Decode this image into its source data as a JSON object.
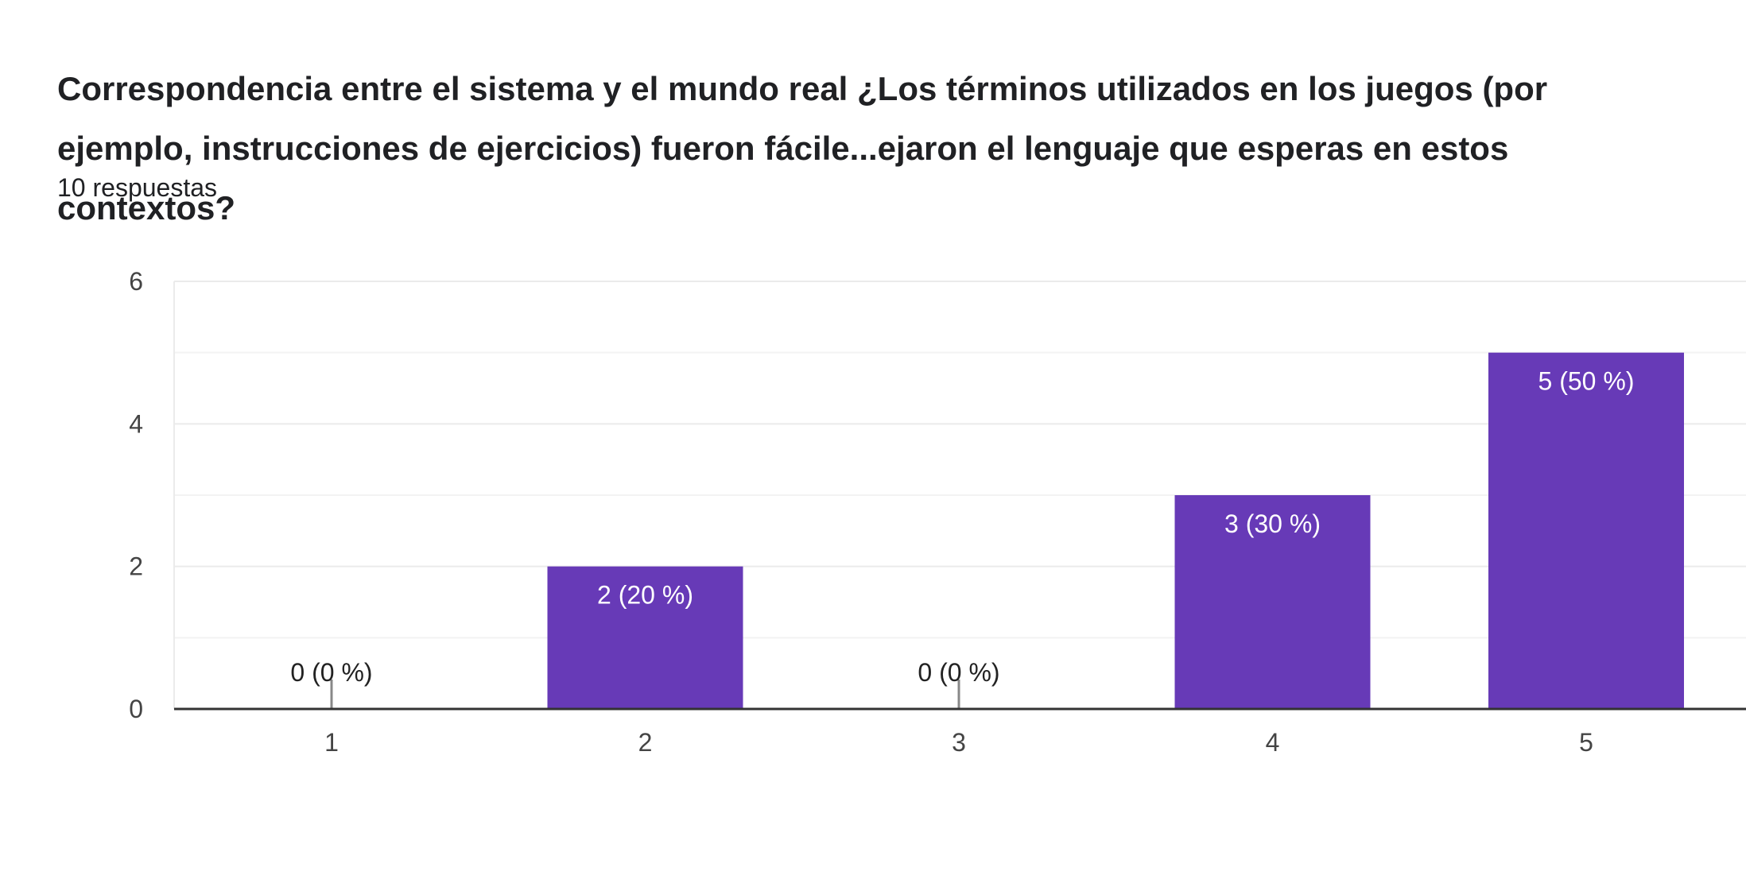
{
  "header": {
    "title_line1": "Correspondencia entre el sistema y el mundo real ¿Los términos utilizados en los juegos (por",
    "title_line2": "ejemplo, instrucciones de ejercicios) fueron fácile...ejaron el lenguaje que esperas en estos contextos?",
    "responses": "10 respuestas"
  },
  "colors": {
    "bar": "#673ab7",
    "grid": "#ebebeb",
    "axis": "#333333",
    "label_inside": "#ffffff",
    "label_outside": "#222222"
  },
  "chart_data": {
    "type": "bar",
    "categories": [
      "1",
      "2",
      "3",
      "4",
      "5"
    ],
    "values": [
      0,
      2,
      0,
      3,
      5
    ],
    "data_labels": [
      "0 (0 %)",
      "2 (20 %)",
      "0 (0 %)",
      "3 (30 %)",
      "5 (50 %)"
    ],
    "ylim": [
      0,
      6
    ],
    "yticks": [
      0,
      2,
      4,
      6
    ],
    "minor_gridlines": [
      1,
      3,
      5
    ],
    "grid": true
  }
}
